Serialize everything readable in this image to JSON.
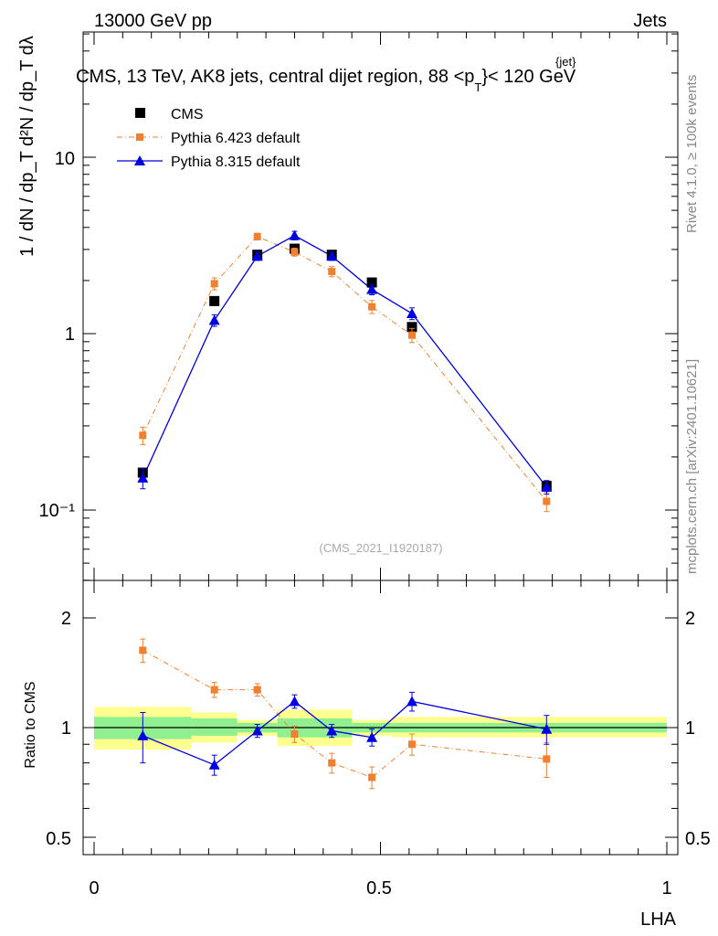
{
  "header": {
    "left": "13000 GeV pp",
    "right": "Jets"
  },
  "title": {
    "main": "CMS, 13 TeV, AK8 jets, central dijet region, 88 <p",
    "sub": "T",
    "sup": "{jet}",
    "tail": "}< 120 GeV"
  },
  "ylabel": {
    "main": "1 / dN / dp_T  d²N / dp_T dλ"
  },
  "side_texts": {
    "rivet": "Rivet 4.1.0, ≥ 100k events",
    "mcplots": "mcplots.cern.ch [arXiv:2401.10621]"
  },
  "watermark": "(CMS_2021_I1920187)",
  "colors": {
    "cms": "#000000",
    "pythia6": "#f08030",
    "pythia8": "#0000e0",
    "band_green": "#90f090",
    "band_yellow": "#ffff90"
  },
  "chart_data": [
    {
      "type": "scatter",
      "name": "main",
      "xlabel": "LHA",
      "ylabel": "1/dN/dp_T d²N/dp_T dλ",
      "yscale": "log",
      "xlim": [
        -0.02,
        1.02
      ],
      "ylim": [
        0.042,
        55
      ],
      "y_tick_labels": [
        "10⁻¹",
        "1",
        "10"
      ],
      "x_tick_labels": [
        "0",
        "0.5",
        "1"
      ],
      "legend": {
        "position": "top-left",
        "entries": [
          "CMS",
          "Pythia 6.423 default",
          "Pythia 8.315 default"
        ]
      },
      "x": [
        0.085,
        0.21,
        0.285,
        0.35,
        0.415,
        0.485,
        0.555,
        0.79
      ],
      "series": [
        {
          "name": "CMS",
          "values": [
            0.163,
            1.53,
            2.8,
            3.03,
            2.8,
            1.95,
            1.09,
            0.137
          ]
        },
        {
          "name": "Pythia 6.423 default",
          "values": [
            0.265,
            1.92,
            3.55,
            2.9,
            2.25,
            1.42,
            0.98,
            0.112
          ],
          "err": [
            0.03,
            0.15,
            0.15,
            0.15,
            0.15,
            0.12,
            0.09,
            0.014
          ]
        },
        {
          "name": "Pythia 8.315 default",
          "values": [
            0.152,
            1.19,
            2.75,
            3.6,
            2.75,
            1.78,
            1.3,
            0.135
          ],
          "err": [
            0.02,
            0.09,
            0.15,
            0.2,
            0.15,
            0.12,
            0.1,
            0.012
          ]
        }
      ]
    },
    {
      "type": "scatter",
      "name": "ratio",
      "xlabel": "LHA",
      "ylabel": "Ratio to CMS",
      "yscale": "log",
      "xlim": [
        -0.02,
        1.02
      ],
      "ylim": [
        0.42,
        2.45
      ],
      "y_tick_labels": [
        "0.5",
        "1",
        "2"
      ],
      "x_tick_labels": [
        "0",
        "0.5",
        "1"
      ],
      "bands": [
        {
          "x0": 0.0,
          "x1": 0.17,
          "green": [
            0.93,
            1.07
          ],
          "yellow": [
            0.87,
            1.14
          ]
        },
        {
          "x0": 0.17,
          "x1": 0.25,
          "green": [
            0.95,
            1.06
          ],
          "yellow": [
            0.91,
            1.1
          ]
        },
        {
          "x0": 0.25,
          "x1": 0.32,
          "green": [
            0.97,
            1.03
          ],
          "yellow": [
            0.95,
            1.05
          ]
        },
        {
          "x0": 0.32,
          "x1": 0.45,
          "green": [
            0.94,
            1.06
          ],
          "yellow": [
            0.89,
            1.12
          ]
        },
        {
          "x0": 0.45,
          "x1": 0.52,
          "green": [
            0.97,
            1.03
          ],
          "yellow": [
            0.95,
            1.05
          ]
        },
        {
          "x0": 0.52,
          "x1": 1.0,
          "green": [
            0.97,
            1.03
          ],
          "yellow": [
            0.94,
            1.07
          ]
        }
      ],
      "x": [
        0.085,
        0.21,
        0.285,
        0.35,
        0.415,
        0.485,
        0.555,
        0.79
      ],
      "series": [
        {
          "name": "Pythia 6.423 default",
          "values": [
            1.63,
            1.27,
            1.27,
            0.96,
            0.8,
            0.73,
            0.9,
            0.82
          ],
          "err": [
            0.12,
            0.06,
            0.05,
            0.05,
            0.05,
            0.05,
            0.06,
            0.09
          ]
        },
        {
          "name": "Pythia 8.315 default",
          "values": [
            0.95,
            0.79,
            0.98,
            1.18,
            0.98,
            0.94,
            1.18,
            0.99
          ],
          "err": [
            0.15,
            0.05,
            0.04,
            0.05,
            0.04,
            0.05,
            0.07,
            0.09
          ]
        }
      ]
    }
  ]
}
